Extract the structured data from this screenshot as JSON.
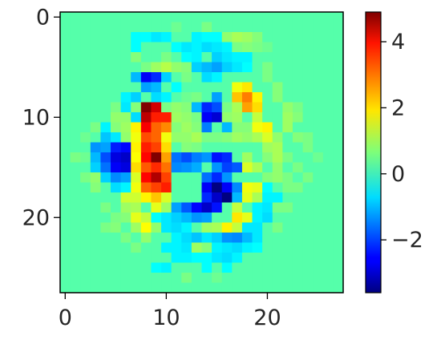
{
  "chart_data": {
    "type": "heatmap",
    "colormap": "jet",
    "size": [
      28,
      28
    ],
    "vmin": -3.6,
    "vmax": 4.9,
    "background_value": 0.3,
    "xlim": [
      -0.5,
      27.5
    ],
    "ylim": [
      27.5,
      -0.5
    ],
    "x_ticks": [
      0,
      10,
      20
    ],
    "y_ticks": [
      0,
      10,
      20
    ],
    "x_tick_labels": [
      "0",
      "10",
      "20"
    ],
    "y_tick_labels": [
      "0",
      "10",
      "20"
    ],
    "colorbar": {
      "ticks": [
        4,
        2,
        0,
        -2
      ],
      "tick_labels": [
        "4",
        "2",
        "0",
        "−2"
      ]
    },
    "cells": [
      [
        8,
        9,
        5.0
      ],
      [
        8,
        10,
        4.4
      ],
      [
        8,
        11,
        3.9
      ],
      [
        8,
        12,
        3.2
      ],
      [
        8,
        13,
        3.6
      ],
      [
        8,
        14,
        3.8
      ],
      [
        8,
        15,
        3.1
      ],
      [
        8,
        16,
        3.8
      ],
      [
        8,
        17,
        3.0
      ],
      [
        8,
        18,
        1.8
      ],
      [
        9,
        9,
        4.2
      ],
      [
        9,
        10,
        3.6
      ],
      [
        9,
        11,
        3.0
      ],
      [
        9,
        12,
        3.0
      ],
      [
        9,
        13,
        3.3
      ],
      [
        9,
        14,
        4.9
      ],
      [
        9,
        15,
        3.5
      ],
      [
        9,
        16,
        4.5
      ],
      [
        9,
        17,
        3.3
      ],
      [
        9,
        18,
        2.2
      ],
      [
        10,
        10,
        3.6
      ],
      [
        10,
        11,
        2.7
      ],
      [
        10,
        12,
        1.6
      ],
      [
        10,
        13,
        2.0
      ],
      [
        10,
        14,
        2.5
      ],
      [
        10,
        15,
        2.9
      ],
      [
        10,
        16,
        3.3
      ],
      [
        10,
        17,
        3.6
      ],
      [
        10,
        18,
        1.4
      ],
      [
        7,
        11,
        1.8
      ],
      [
        7,
        12,
        1.6
      ],
      [
        7,
        13,
        1.8
      ],
      [
        7,
        14,
        1.7
      ],
      [
        7,
        15,
        2.0
      ],
      [
        7,
        16,
        1.4
      ],
      [
        7,
        17,
        1.6
      ],
      [
        7,
        18,
        1.3
      ],
      [
        6,
        18,
        1.3
      ],
      [
        6,
        19,
        0.9
      ],
      [
        7,
        19,
        1.0
      ],
      [
        9,
        19,
        1.5
      ],
      [
        10,
        19,
        0.9
      ],
      [
        5,
        13,
        -2.3
      ],
      [
        5,
        14,
        -2.8
      ],
      [
        5,
        15,
        -2.6
      ],
      [
        6,
        13,
        -2.5
      ],
      [
        6,
        14,
        -3.0
      ],
      [
        6,
        15,
        -2.8
      ],
      [
        4,
        14,
        -1.9
      ],
      [
        4,
        15,
        -1.6
      ],
      [
        5,
        16,
        -1.4
      ],
      [
        4,
        13,
        -1.2
      ],
      [
        6,
        16,
        -1.2
      ],
      [
        7,
        10,
        -0.7
      ],
      [
        8,
        6,
        -2.6
      ],
      [
        9,
        6,
        -2.2
      ],
      [
        8,
        7,
        -1.2
      ],
      [
        9,
        7,
        -1.0
      ],
      [
        7,
        6,
        -1.0
      ],
      [
        10,
        6,
        -0.8
      ],
      [
        14,
        9,
        -2.2
      ],
      [
        15,
        9,
        -1.9
      ],
      [
        14,
        10,
        -2.6
      ],
      [
        15,
        10,
        -2.9
      ],
      [
        14,
        11,
        -1.5
      ],
      [
        16,
        11,
        -1.0
      ],
      [
        13,
        9,
        -1.0
      ],
      [
        15,
        8,
        -1.2
      ],
      [
        11,
        14,
        -1.6
      ],
      [
        12,
        14,
        -1.9
      ],
      [
        13,
        14,
        -1.5
      ],
      [
        11,
        15,
        -1.4
      ],
      [
        12,
        15,
        -1.3
      ],
      [
        13,
        15,
        -1.1
      ],
      [
        14,
        14,
        -1.3
      ],
      [
        15,
        14,
        -2.4
      ],
      [
        16,
        14,
        -2.2
      ],
      [
        15,
        15,
        -1.3
      ],
      [
        16,
        15,
        -2.0
      ],
      [
        17,
        15,
        -1.8
      ],
      [
        16,
        16,
        -1.3
      ],
      [
        14,
        16,
        -1.6
      ],
      [
        15,
        16,
        -2.2
      ],
      [
        16,
        17,
        -2.6
      ],
      [
        15,
        17,
        -3.6
      ],
      [
        14,
        17,
        -2.6
      ],
      [
        16,
        18,
        -3.6
      ],
      [
        15,
        18,
        -3.0
      ],
      [
        14,
        18,
        -2.2
      ],
      [
        17,
        17,
        -1.4
      ],
      [
        17,
        18,
        -1.0
      ],
      [
        12,
        19,
        -1.8
      ],
      [
        13,
        19,
        -2.5
      ],
      [
        14,
        19,
        -3.0
      ],
      [
        15,
        19,
        -2.4
      ],
      [
        11,
        19,
        -1.2
      ],
      [
        12,
        20,
        -1.0
      ],
      [
        13,
        20,
        -1.3
      ],
      [
        11,
        20,
        -0.8
      ],
      [
        14,
        20,
        -1.2
      ],
      [
        10,
        20,
        -0.6
      ],
      [
        17,
        7,
        1.6
      ],
      [
        18,
        7,
        1.9
      ],
      [
        17,
        8,
        2.2
      ],
      [
        18,
        8,
        2.8
      ],
      [
        19,
        8,
        1.8
      ],
      [
        18,
        9,
        2.5
      ],
      [
        19,
        9,
        2.0
      ],
      [
        19,
        10,
        1.2
      ],
      [
        17,
        9,
        1.0
      ],
      [
        19,
        11,
        1.6
      ],
      [
        20,
        11,
        1.8
      ],
      [
        20,
        12,
        1.4
      ],
      [
        19,
        12,
        1.0
      ],
      [
        18,
        12,
        0.8
      ],
      [
        18,
        11,
        0.7
      ],
      [
        18,
        14,
        0.9
      ],
      [
        18,
        15,
        1.4
      ],
      [
        19,
        15,
        1.0
      ],
      [
        18,
        17,
        1.6
      ],
      [
        19,
        17,
        1.5
      ],
      [
        18,
        18,
        1.5
      ],
      [
        19,
        18,
        1.0
      ],
      [
        17,
        19,
        1.2
      ],
      [
        17,
        20,
        1.9
      ],
      [
        18,
        20,
        1.5
      ],
      [
        16,
        21,
        1.8
      ],
      [
        17,
        21,
        1.2
      ],
      [
        15,
        21,
        1.0
      ],
      [
        14,
        21,
        0.9
      ],
      [
        15,
        22,
        -0.8
      ],
      [
        16,
        22,
        -1.3
      ],
      [
        17,
        22,
        -1.4
      ],
      [
        18,
        22,
        -1.0
      ],
      [
        19,
        22,
        -0.6
      ],
      [
        14,
        22,
        -0.6
      ],
      [
        18,
        21,
        -0.6
      ],
      [
        7,
        20,
        1.5
      ],
      [
        8,
        20,
        1.2
      ],
      [
        8,
        21,
        1.7
      ],
      [
        7,
        21,
        0.9
      ],
      [
        9,
        21,
        0.8
      ],
      [
        6,
        20,
        0.7
      ],
      [
        8,
        22,
        0.8
      ],
      [
        12,
        22,
        -0.7
      ],
      [
        13,
        22,
        -0.9
      ],
      [
        12,
        23,
        -0.6
      ],
      [
        13,
        23,
        0.9
      ],
      [
        14,
        23,
        0.7
      ],
      [
        11,
        22,
        -0.5
      ],
      [
        4,
        12,
        -0.9
      ],
      [
        3,
        13,
        -1.3
      ],
      [
        3,
        14,
        -1.0
      ],
      [
        3,
        15,
        -0.8
      ],
      [
        4,
        16,
        -0.8
      ],
      [
        5,
        17,
        -0.7
      ],
      [
        6,
        17,
        -0.5
      ],
      [
        5,
        12,
        -0.6
      ],
      [
        4,
        11,
        -0.5
      ],
      [
        6,
        9,
        -0.6
      ],
      [
        7,
        8,
        -0.8
      ],
      [
        6,
        8,
        -0.5
      ],
      [
        10,
        8,
        -0.5
      ],
      [
        9,
        8,
        -0.7
      ],
      [
        11,
        7,
        -0.4
      ],
      [
        14,
        5,
        -1.0
      ],
      [
        15,
        5,
        -1.2
      ],
      [
        13,
        5,
        -0.8
      ],
      [
        14,
        6,
        -0.7
      ],
      [
        15,
        4,
        -0.8
      ],
      [
        16,
        4,
        -0.6
      ],
      [
        17,
        5,
        -0.6
      ],
      [
        16,
        5,
        -0.8
      ],
      [
        15,
        6,
        -0.5
      ],
      [
        18,
        5,
        -0.4
      ],
      [
        12,
        3,
        -0.6
      ],
      [
        13,
        3,
        -0.5
      ],
      [
        14,
        3,
        -0.7
      ],
      [
        15,
        3,
        -0.6
      ],
      [
        16,
        3,
        -0.5
      ],
      [
        17,
        4,
        -0.5
      ],
      [
        18,
        4,
        -0.5
      ],
      [
        13,
        4,
        -0.5
      ],
      [
        12,
        4,
        -0.4
      ],
      [
        16,
        2,
        0.8
      ],
      [
        17,
        2,
        1.0
      ],
      [
        18,
        2,
        0.9
      ],
      [
        18,
        3,
        0.7
      ],
      [
        19,
        3,
        0.6
      ],
      [
        17,
        3,
        0.6
      ],
      [
        19,
        2,
        0.7
      ],
      [
        20,
        3,
        0.5
      ],
      [
        13,
        2,
        -0.5
      ],
      [
        14,
        2,
        -0.4
      ],
      [
        11,
        3,
        -0.4
      ],
      [
        15,
        2,
        -0.4
      ],
      [
        9,
        2,
        -0.6
      ],
      [
        7,
        2,
        -0.4
      ],
      [
        8,
        2,
        -0.4
      ],
      [
        10,
        2,
        -0.5
      ],
      [
        7,
        3,
        -0.4
      ],
      [
        20,
        13,
        0.9
      ],
      [
        21,
        13,
        1.0
      ],
      [
        20,
        14,
        0.7
      ],
      [
        21,
        15,
        0.8
      ],
      [
        21,
        16,
        0.8
      ],
      [
        20,
        16,
        0.7
      ],
      [
        21,
        12,
        0.8
      ],
      [
        21,
        14,
        1.0
      ],
      [
        19,
        19,
        -0.5
      ],
      [
        20,
        19,
        -0.6
      ],
      [
        20,
        20,
        -0.7
      ],
      [
        19,
        20,
        -0.5
      ],
      [
        19,
        21,
        -0.6
      ],
      [
        20,
        18,
        -0.5
      ],
      [
        21,
        18,
        -0.5
      ],
      [
        20,
        17,
        -0.4
      ],
      [
        10,
        21,
        -0.6
      ],
      [
        11,
        21,
        -0.7
      ],
      [
        9,
        20,
        -0.4
      ],
      [
        12,
        21,
        -0.5
      ],
      [
        11,
        23,
        -0.5
      ],
      [
        10,
        23,
        -0.5
      ],
      [
        11,
        24,
        -0.5
      ],
      [
        12,
        24,
        -0.5
      ],
      [
        13,
        24,
        -0.4
      ],
      [
        14,
        24,
        -0.4
      ],
      [
        15,
        24,
        -0.6
      ],
      [
        16,
        24,
        -0.7
      ],
      [
        17,
        24,
        -0.5
      ],
      [
        16,
        23,
        -0.6
      ],
      [
        15,
        23,
        -0.5
      ],
      [
        17,
        23,
        -0.7
      ],
      [
        18,
        23,
        -0.5
      ],
      [
        19,
        23,
        -0.4
      ],
      [
        9,
        25,
        -0.4
      ],
      [
        10,
        25,
        -0.5
      ],
      [
        14,
        25,
        -0.4
      ],
      [
        16,
        25,
        -0.4
      ],
      [
        3,
        16,
        0.8
      ],
      [
        3,
        17,
        0.7
      ],
      [
        2,
        16,
        0.6
      ],
      [
        3,
        11,
        0.6
      ],
      [
        2,
        12,
        0.5
      ],
      [
        9,
        5,
        0.9
      ],
      [
        10,
        5,
        1.1
      ],
      [
        11,
        5,
        0.8
      ],
      [
        10,
        4,
        0.6
      ],
      [
        8,
        5,
        0.6
      ],
      [
        12,
        5,
        0.7
      ],
      [
        22,
        9,
        0.8
      ],
      [
        23,
        9,
        0.6
      ],
      [
        22,
        10,
        0.9
      ],
      [
        22,
        11,
        0.9
      ],
      [
        23,
        10,
        0.7
      ],
      [
        22,
        16,
        0.6
      ],
      [
        22,
        17,
        0.6
      ],
      [
        21,
        19,
        0.6
      ],
      [
        22,
        14,
        0.6
      ],
      [
        12,
        11,
        0.9
      ],
      [
        12,
        12,
        0.8
      ],
      [
        13,
        12,
        1.0
      ],
      [
        11,
        12,
        0.8
      ],
      [
        12,
        13,
        0.7
      ],
      [
        13,
        13,
        0.6
      ],
      [
        14,
        12,
        0.6
      ],
      [
        13,
        11,
        0.7
      ],
      [
        11,
        11,
        0.7
      ],
      [
        16,
        9,
        0.6
      ],
      [
        16,
        10,
        0.8
      ],
      [
        17,
        10,
        0.9
      ],
      [
        16,
        12,
        0.7
      ],
      [
        17,
        12,
        0.9
      ],
      [
        15,
        12,
        0.6
      ],
      [
        17,
        11,
        0.7
      ],
      [
        11,
        9,
        0.8
      ],
      [
        11,
        10,
        0.9
      ],
      [
        12,
        9,
        0.7
      ],
      [
        12,
        10,
        0.8
      ],
      [
        13,
        10,
        0.6
      ],
      [
        10,
        9,
        0.6
      ],
      [
        13,
        8,
        0.6
      ],
      [
        12,
        8,
        0.5
      ],
      [
        5,
        10,
        0.8
      ],
      [
        5,
        11,
        0.7
      ],
      [
        6,
        10,
        0.8
      ],
      [
        6,
        11,
        0.9
      ],
      [
        6,
        12,
        0.8
      ],
      [
        7,
        9,
        0.7
      ],
      [
        5,
        9,
        0.6
      ],
      [
        7,
        4,
        0.7
      ],
      [
        12,
        6,
        0.6
      ],
      [
        20,
        6,
        0.6
      ],
      [
        21,
        7,
        0.7
      ],
      [
        21,
        8,
        0.7
      ],
      [
        20,
        5,
        0.6
      ],
      [
        24,
        12,
        0.6
      ],
      [
        24,
        13,
        0.6
      ],
      [
        23,
        12,
        0.7
      ],
      [
        23,
        15,
        0.6
      ],
      [
        23,
        17,
        0.6
      ],
      [
        22,
        19,
        0.6
      ],
      [
        21,
        21,
        0.6
      ],
      [
        4,
        19,
        0.6
      ],
      [
        5,
        20,
        0.6
      ],
      [
        5,
        21,
        0.7
      ],
      [
        4,
        21,
        0.6
      ],
      [
        6,
        22,
        0.6
      ],
      [
        7,
        23,
        0.6
      ],
      [
        1,
        14,
        0.6
      ],
      [
        2,
        14,
        0.5
      ],
      [
        25,
        14,
        0.5
      ],
      [
        24,
        16,
        0.6
      ],
      [
        15,
        26,
        0.5
      ],
      [
        12,
        26,
        0.6
      ],
      [
        14,
        1,
        0.6
      ],
      [
        11,
        1,
        0.5
      ]
    ]
  }
}
